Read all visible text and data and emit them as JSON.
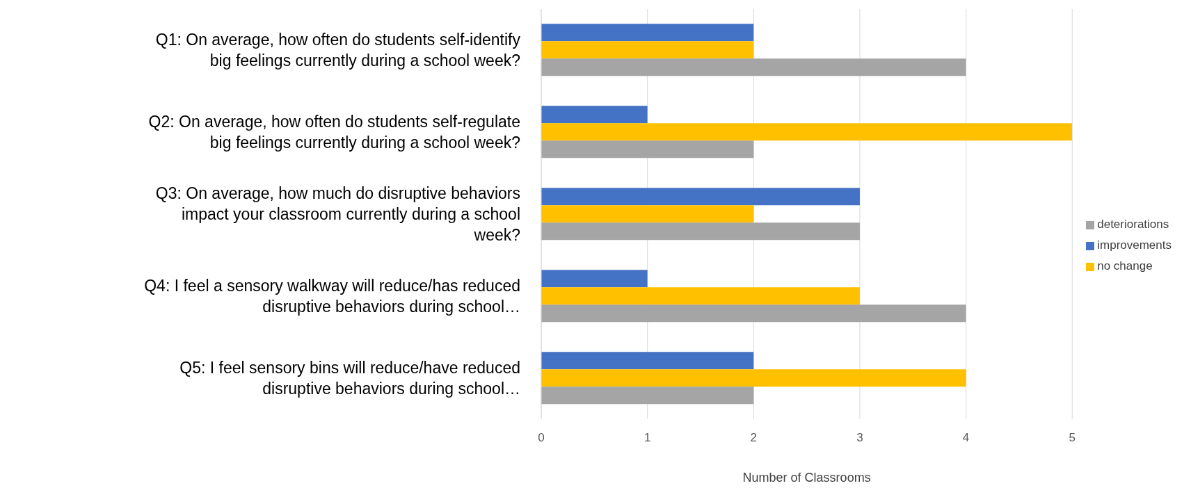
{
  "chart_data": {
    "type": "bar",
    "orientation": "horizontal",
    "xlabel": "Number of Classrooms",
    "categories": [
      "Q1: On average, how often do students self-identify big feelings currently during a school week?",
      "Q2: On average, how often do students self-regulate big feelings currently during a school week?",
      "Q3: On average, how much do disruptive behaviors impact your classroom currently during a school week?",
      "Q4: I feel a sensory walkway will reduce/has reduced disruptive behaviors during school…",
      "Q5: I feel sensory bins will reduce/have reduced disruptive behaviors during school…"
    ],
    "series": [
      {
        "name": "improvements",
        "color": "#4472c4",
        "values": [
          2,
          1,
          3,
          1,
          2
        ]
      },
      {
        "name": "no change",
        "color": "#ffc000",
        "values": [
          2,
          5,
          2,
          3,
          4
        ]
      },
      {
        "name": "deteriorations",
        "color": "#a5a5a5",
        "values": [
          4,
          2,
          3,
          4,
          2
        ]
      }
    ],
    "xlim": [
      0,
      5
    ],
    "xticks": [
      0,
      1,
      2,
      3,
      4,
      5
    ],
    "grid": "x",
    "legend": "right"
  }
}
